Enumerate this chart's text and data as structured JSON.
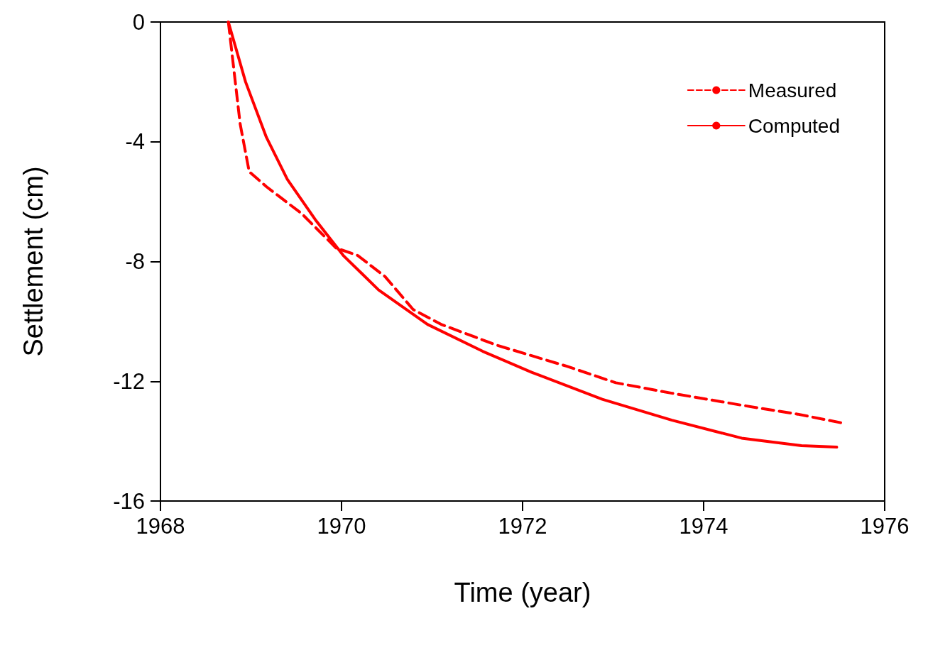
{
  "chart_data": {
    "type": "line",
    "xlabel": "Time (year)",
    "ylabel": "Settlement (cm)",
    "xlim": [
      1968,
      1976
    ],
    "xticks": [
      1968,
      1970,
      1972,
      1974,
      1976
    ],
    "ylim": [
      -16,
      0
    ],
    "yticks": [
      -16,
      -12,
      -8,
      -4,
      0
    ],
    "grid": false,
    "legend": "top right",
    "marker": "none",
    "series": [
      {
        "name": "Measured",
        "color": "#ff0000",
        "line_style": "dashed",
        "x": [
          1968.75,
          1968.88,
          1968.98,
          1969.17,
          1969.56,
          1969.94,
          1970.18,
          1970.48,
          1970.79,
          1971.1,
          1971.72,
          1972.49,
          1973.03,
          1973.65,
          1974.42,
          1975.04,
          1975.54
        ],
        "values": [
          0,
          -3.4,
          -5.0,
          -5.5,
          -6.4,
          -7.55,
          -7.8,
          -8.5,
          -9.6,
          -10.1,
          -10.8,
          -11.5,
          -12.05,
          -12.4,
          -12.8,
          -13.1,
          -13.4
        ]
      },
      {
        "name": "Computed",
        "color": "#ff0000",
        "line_style": "solid",
        "x": [
          1968.75,
          1968.94,
          1969.17,
          1969.4,
          1969.71,
          1970.02,
          1970.41,
          1970.95,
          1971.56,
          1972.1,
          1972.88,
          1973.65,
          1974.42,
          1975.08,
          1975.47
        ],
        "values": [
          0,
          -2.0,
          -3.85,
          -5.25,
          -6.6,
          -7.8,
          -8.95,
          -10.1,
          -11.0,
          -11.7,
          -12.6,
          -13.3,
          -13.9,
          -14.15,
          -14.2
        ]
      }
    ]
  }
}
